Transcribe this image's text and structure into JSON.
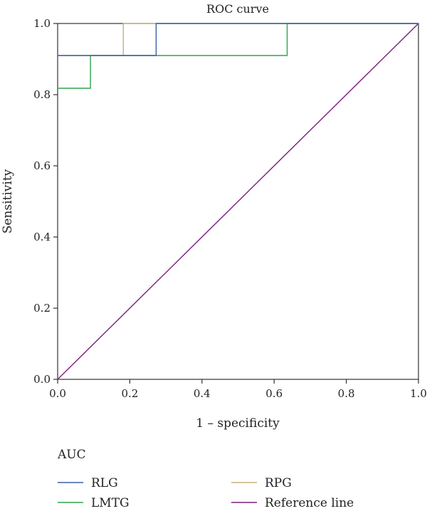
{
  "chart_data": {
    "type": "line",
    "title": "ROC curve",
    "xlabel": "1 – specificity",
    "ylabel": "Sensitivity",
    "xlim": [
      0,
      1
    ],
    "ylim": [
      0,
      1
    ],
    "x_ticks": [
      "0.0",
      "0.2",
      "0.4",
      "0.6",
      "0.8",
      "1.0"
    ],
    "y_ticks": [
      "0.0",
      "0.2",
      "0.4",
      "0.6",
      "0.8",
      "1.0"
    ],
    "grid": false,
    "legend_title": "AUC",
    "legend_position": "bottom",
    "series": [
      {
        "name": "RLG",
        "color": "#3a5fa8",
        "points": [
          [
            0,
            0.91
          ],
          [
            0.273,
            0.91
          ],
          [
            0.273,
            1.0
          ],
          [
            1.0,
            1.0
          ]
        ]
      },
      {
        "name": "RPG",
        "color": "#c8b07a",
        "points": [
          [
            0,
            0.91
          ],
          [
            0.182,
            0.91
          ],
          [
            0.182,
            1.0
          ],
          [
            1.0,
            1.0
          ]
        ]
      },
      {
        "name": "LMTG",
        "color": "#2ea44f",
        "points": [
          [
            0,
            0.818
          ],
          [
            0.091,
            0.818
          ],
          [
            0.091,
            0.91
          ],
          [
            0.636,
            0.91
          ],
          [
            0.636,
            1.0
          ],
          [
            1.0,
            1.0
          ]
        ]
      },
      {
        "name": "Reference line",
        "color": "#7b1f7f",
        "points": [
          [
            0,
            0
          ],
          [
            1,
            1
          ]
        ]
      }
    ]
  }
}
